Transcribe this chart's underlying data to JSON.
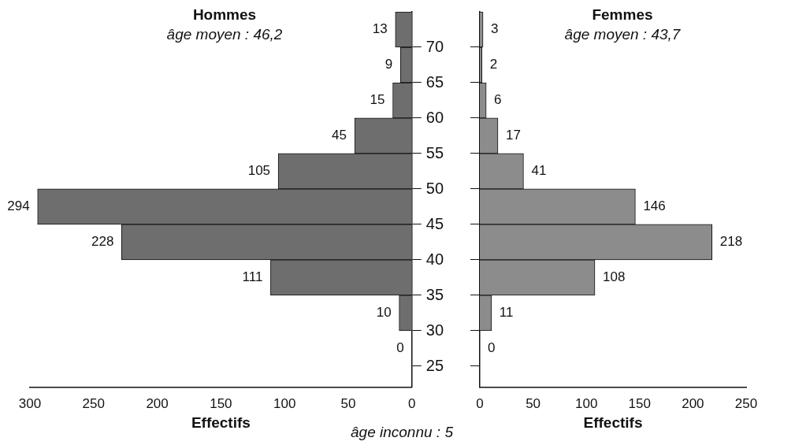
{
  "chart_data": [
    {
      "type": "histogram",
      "orientation": "horizontal",
      "title": "Hommes",
      "subtitle": "âge moyen : 46,2",
      "xlabel": "Effectifs",
      "bins": [
        25,
        30,
        35,
        40,
        45,
        50,
        55,
        60,
        65,
        70,
        75
      ],
      "values": [
        0,
        10,
        111,
        228,
        294,
        105,
        45,
        15,
        9,
        13
      ],
      "color": "#6e6e6e",
      "xlim": [
        300,
        0
      ],
      "xticks": [
        300,
        250,
        200,
        150,
        100,
        50,
        0
      ],
      "ylim": [
        22,
        75
      ],
      "yticks": [
        25,
        30,
        35,
        40,
        45,
        50,
        55,
        60,
        65,
        70
      ],
      "data_labels": true,
      "grid": false,
      "annotations": [
        "âge inconnu : 5"
      ]
    },
    {
      "type": "histogram",
      "orientation": "horizontal",
      "title": "Femmes",
      "subtitle": "âge moyen : 43,7",
      "xlabel": "Effectifs",
      "bins": [
        25,
        30,
        35,
        40,
        45,
        50,
        55,
        60,
        65,
        70,
        75
      ],
      "values": [
        0,
        11,
        108,
        218,
        146,
        41,
        17,
        6,
        2,
        3
      ],
      "color": "#8c8c8c",
      "xlim": [
        0,
        250
      ],
      "xticks": [
        0,
        50,
        100,
        150,
        200,
        250
      ],
      "ylim": [
        22,
        75
      ],
      "yticks": [
        25,
        30,
        35,
        40,
        45,
        50,
        55,
        60,
        65,
        70
      ],
      "data_labels": true,
      "grid": false,
      "tick_labels": "x"
    }
  ]
}
